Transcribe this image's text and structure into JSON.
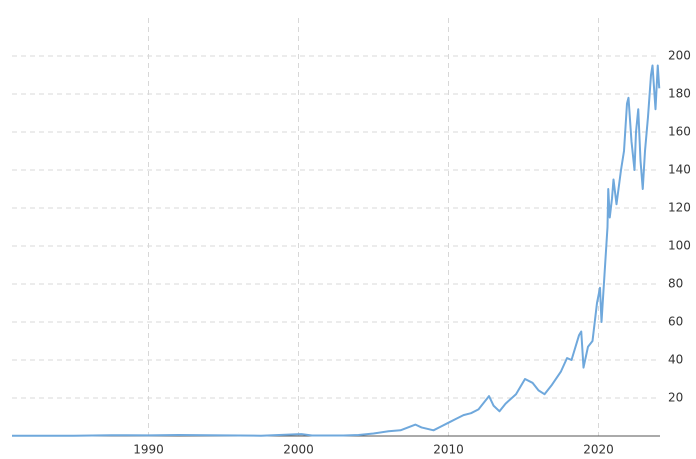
{
  "chart_data": {
    "type": "line",
    "x": [
      1980.9,
      1985,
      1987.5,
      1990,
      1992,
      1995,
      1997.5,
      1999.9,
      2000.2,
      2000.9,
      2003,
      2004,
      2005,
      2006,
      2006.8,
      2007.8,
      2008.2,
      2009,
      2009.5,
      2010,
      2010.5,
      2011,
      2011.5,
      2012,
      2012.7,
      2013,
      2013.4,
      2013.8,
      2014.5,
      2015.1,
      2015.6,
      2016.0,
      2016.4,
      2016.9,
      2017.5,
      2017.9,
      2018.2,
      2018.7,
      2018.85,
      2019.0,
      2019.3,
      2019.6,
      2019.9,
      2020.1,
      2020.2,
      2020.4,
      2020.6,
      2020.65,
      2020.75,
      2020.9,
      2021.0,
      2021.2,
      2021.5,
      2021.7,
      2021.9,
      2022.0,
      2022.2,
      2022.4,
      2022.5,
      2022.65,
      2022.8,
      2022.95,
      2023.1,
      2023.3,
      2023.5,
      2023.6,
      2023.8,
      2023.95,
      2024.05
    ],
    "series": [
      {
        "color": "#6fa8dc",
        "values": [
          0.1,
          0.1,
          0.4,
          0.35,
          0.5,
          0.35,
          0.15,
          0.9,
          1.0,
          0.25,
          0.25,
          0.5,
          1.3,
          2.5,
          3,
          6,
          4.5,
          3,
          5,
          7,
          9,
          11,
          12,
          14,
          21,
          16,
          13,
          17,
          22,
          30,
          28,
          24,
          22,
          27,
          34,
          41,
          40,
          53,
          55,
          36,
          47,
          50,
          70,
          78,
          60,
          85,
          110,
          130,
          115,
          125,
          135,
          122,
          140,
          150,
          175,
          178,
          155,
          140,
          160,
          172,
          145,
          130,
          150,
          168,
          190,
          195,
          172,
          195,
          183
        ]
      }
    ],
    "xlim": [
      1980.9,
      2024.1
    ],
    "xticks": [
      1990,
      2000,
      2010,
      2020
    ],
    "ylim": [
      0,
      220
    ],
    "yticks": [
      20,
      40,
      60,
      80,
      100,
      120,
      140,
      160,
      180,
      200
    ],
    "grid": true
  }
}
